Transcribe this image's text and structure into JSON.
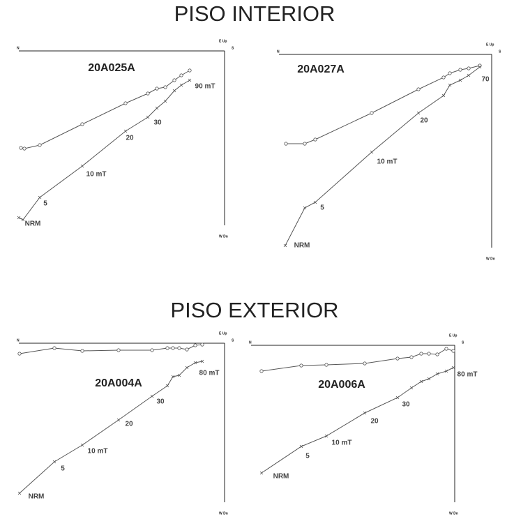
{
  "headings": [
    "PISO INTERIOR",
    "PISO EXTERIOR"
  ],
  "chart_data": [
    {
      "type": "zijderveld",
      "title": "20A025A",
      "color": "#555555",
      "axis_labels": {
        "left": "N",
        "right": "S",
        "top": "E Up",
        "bottom": "W Dn"
      },
      "xlim": [
        -295,
        0
      ],
      "ylim": [
        -250,
        0
      ],
      "series": [
        {
          "marker": "circle",
          "x": [
            -292,
            -287,
            -265,
            -204,
            -142,
            -110,
            -97,
            -85,
            -72,
            -62,
            -50
          ],
          "values": [
            -139,
            -140,
            -135,
            -105,
            -75,
            -61,
            -54,
            -52,
            -42,
            -35,
            -28
          ]
        },
        {
          "marker": "cross",
          "x": [
            -295,
            -289,
            -265,
            -204,
            -142,
            -110,
            -97,
            -85,
            -72,
            -62,
            -50
          ],
          "values": [
            -239,
            -242,
            -210,
            -165,
            -115,
            -95,
            -82,
            -72,
            -57,
            -49,
            -42
          ]
        }
      ],
      "annotations": [
        "NRM",
        "5",
        "10 mT",
        "20",
        "30",
        "90 mT"
      ]
    },
    {
      "type": "zijderveld",
      "title": "20A027A",
      "color": "#555555",
      "axis_labels": {
        "left": "N",
        "right": "S",
        "top": "E Up",
        "bottom": "W Dn"
      },
      "xlim": [
        -305,
        0
      ],
      "ylim": [
        -277,
        0
      ],
      "series": [
        {
          "marker": "circle",
          "x": [
            -295,
            -268,
            -253,
            -172,
            -105,
            -69,
            -60,
            -45,
            -33,
            -17
          ],
          "values": [
            -128,
            -128,
            -122,
            -84,
            -50,
            -33,
            -27,
            -22,
            -20,
            -16
          ]
        },
        {
          "marker": "cross",
          "x": [
            -296,
            -268,
            -253,
            -172,
            -105,
            -69,
            -60,
            -45,
            -33,
            -17
          ],
          "values": [
            -274,
            -220,
            -212,
            -140,
            -84,
            -59,
            -44,
            -37,
            -30,
            -18
          ]
        }
      ],
      "annotations": [
        "NRM",
        "5",
        "10 mT",
        "20",
        "70"
      ]
    },
    {
      "type": "zijderveld",
      "title": "20A004A",
      "color": "#555555",
      "axis_labels": {
        "left": "N",
        "right": "S",
        "top": "E Up",
        "bottom": "W Dn"
      },
      "xlim": [
        -295,
        0
      ],
      "ylim": [
        -228,
        0
      ],
      "series": [
        {
          "marker": "circle",
          "x": [
            -294,
            -244,
            -204,
            -152,
            -104,
            -82,
            -74,
            -65,
            -54,
            -42,
            -32
          ],
          "values": [
            -15,
            -7,
            -11,
            -10,
            -10,
            -7,
            -7,
            -7,
            -9,
            -3,
            -2
          ]
        },
        {
          "marker": "cross",
          "x": [
            -294,
            -244,
            -204,
            -152,
            -104,
            -82,
            -74,
            -65,
            -54,
            -42,
            -32
          ],
          "values": [
            -215,
            -170,
            -146,
            -110,
            -76,
            -61,
            -48,
            -46,
            -35,
            -28,
            -26
          ]
        }
      ],
      "annotations": [
        "NRM",
        "5",
        "10 mT",
        "20",
        "30",
        "80 mT"
      ]
    },
    {
      "type": "zijderveld",
      "title": "20A006A",
      "color": "#555555",
      "axis_labels": {
        "left": "N",
        "right": "S",
        "top": "E Up",
        "bottom": "W Dn"
      },
      "xlim": [
        -292,
        0
      ],
      "ylim": [
        -225,
        0
      ],
      "series": [
        {
          "marker": "circle",
          "x": [
            -277,
            -220,
            -184,
            -129,
            -82,
            -62,
            -48,
            -37,
            -25,
            -12,
            -2
          ],
          "values": [
            -37,
            -29,
            -28,
            -26,
            -19,
            -17,
            -12,
            -12,
            -13,
            -5,
            -8
          ]
        },
        {
          "marker": "cross",
          "x": [
            -277,
            -220,
            -184,
            -129,
            -82,
            -62,
            -48,
            -37,
            -25,
            -12,
            -2
          ],
          "values": [
            -183,
            -145,
            -130,
            -97,
            -75,
            -61,
            -52,
            -48,
            -41,
            -37,
            -32
          ]
        }
      ],
      "annotations": [
        "NRM",
        "5",
        "10 mT",
        "20",
        "30",
        "80 mT"
      ]
    }
  ]
}
